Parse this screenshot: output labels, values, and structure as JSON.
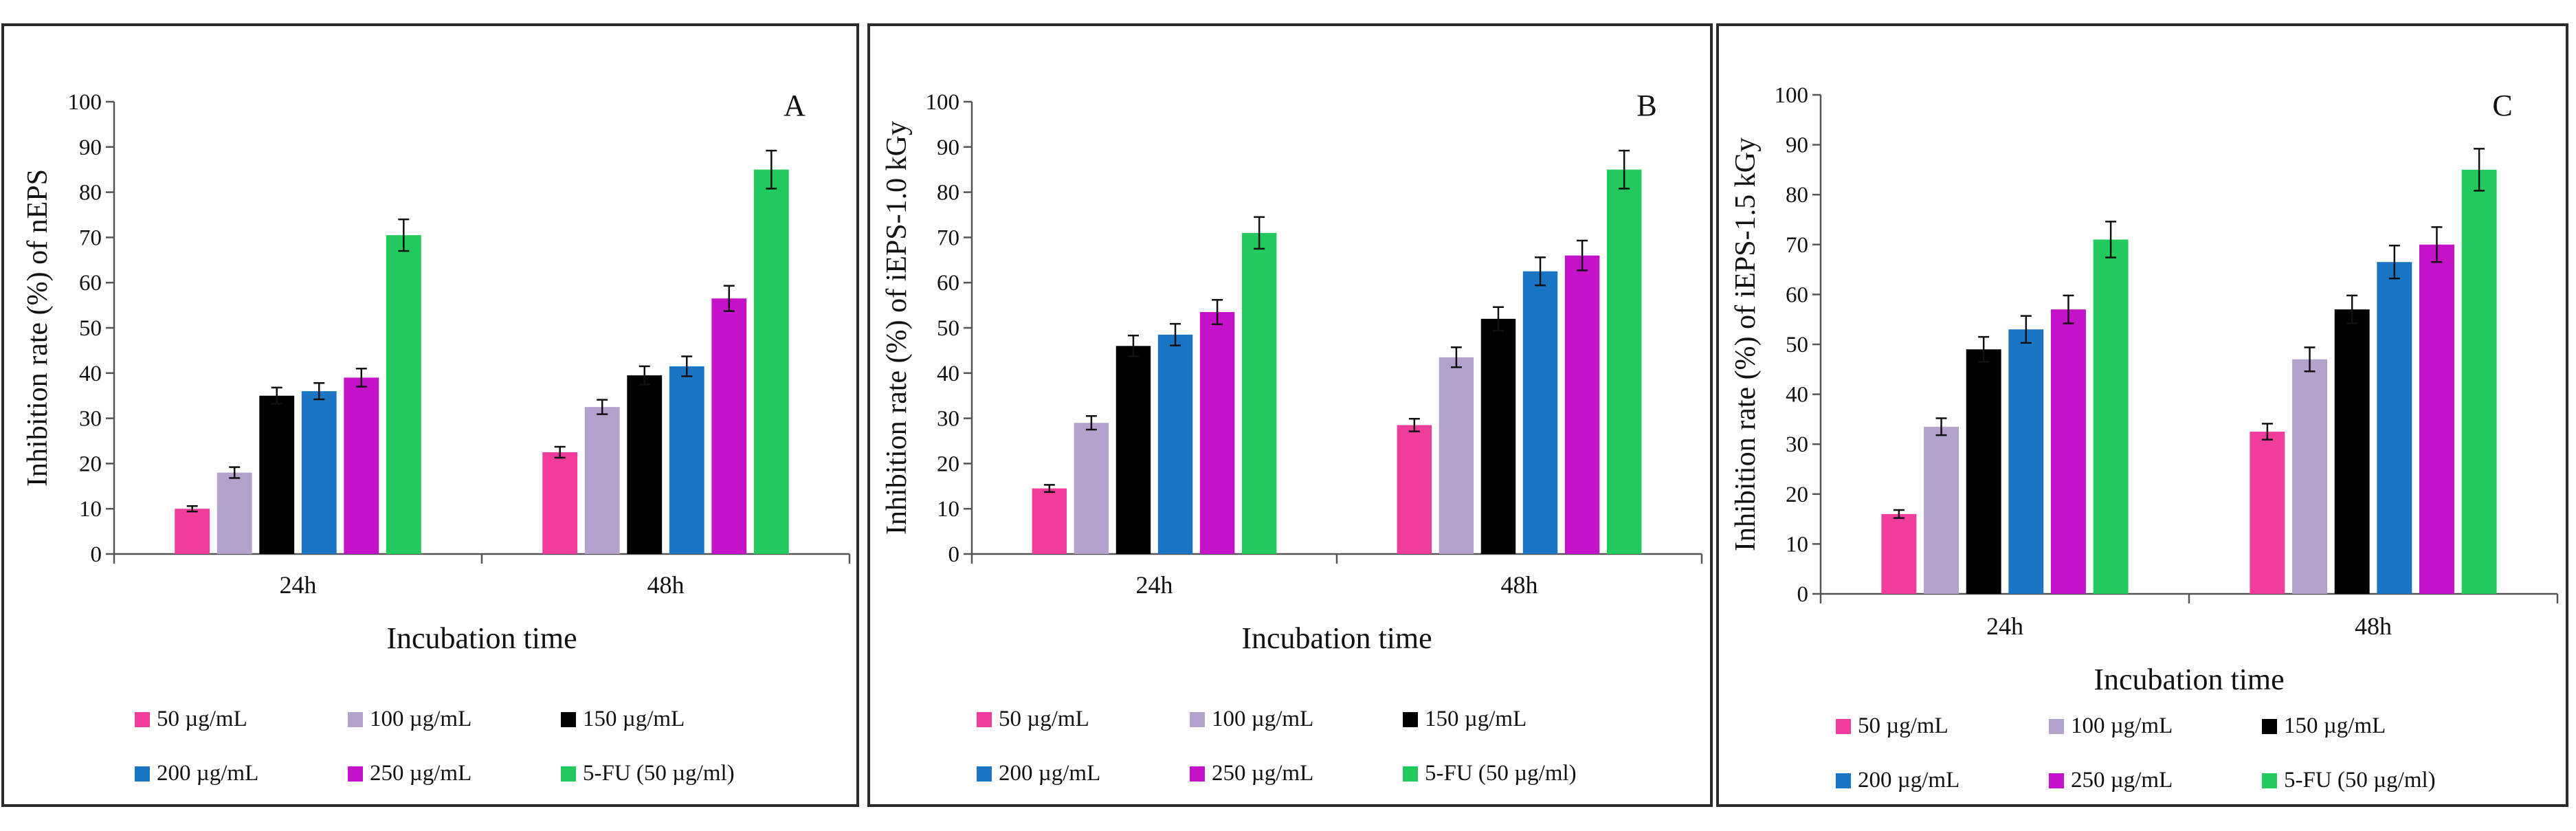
{
  "chart_data": [
    {
      "type": "bar",
      "panel_label": "A",
      "ylabel": "Inhibition rate (%) of nEPS",
      "xlabel": "Incubation time",
      "categories": [
        "24h",
        "48h"
      ],
      "ylim": [
        0,
        100
      ],
      "yticks": [
        "0",
        "10",
        "20",
        "30",
        "40",
        "50",
        "60",
        "70",
        "80",
        "90",
        "100"
      ],
      "series": [
        {
          "name": "50 µg/mL",
          "color": "#f03c9a",
          "values": [
            10.0,
            22.5
          ],
          "errors": [
            0.6,
            1.2
          ]
        },
        {
          "name": "100 µg/mL",
          "color": "#b3a2cc",
          "values": [
            18.0,
            32.5
          ],
          "errors": [
            1.2,
            1.6
          ]
        },
        {
          "name": "150 µg/mL",
          "color": "#000000",
          "values": [
            35.0,
            39.5
          ],
          "errors": [
            1.8,
            2.0
          ]
        },
        {
          "name": "200 µg/mL",
          "color": "#1a76c4",
          "values": [
            36.0,
            41.5
          ],
          "errors": [
            1.8,
            2.2
          ]
        },
        {
          "name": "250 µg/mL",
          "color": "#c412c8",
          "values": [
            39.0,
            56.5
          ],
          "errors": [
            2.0,
            2.8
          ]
        },
        {
          "name": "5-FU (50 µg/ml)",
          "color": "#22c95c",
          "values": [
            70.5,
            85.0
          ],
          "errors": [
            3.5,
            4.2
          ]
        }
      ]
    },
    {
      "type": "bar",
      "panel_label": "B",
      "ylabel": "Inhibition rate (%) of iEPS-1.0 kGy",
      "xlabel": "Incubation time",
      "categories": [
        "24h",
        "48h"
      ],
      "ylim": [
        0,
        100
      ],
      "yticks": [
        "0",
        "10",
        "20",
        "30",
        "40",
        "50",
        "60",
        "70",
        "80",
        "90",
        "100"
      ],
      "series": [
        {
          "name": "50 µg/mL",
          "color": "#f03c9a",
          "values": [
            14.5,
            28.5
          ],
          "errors": [
            0.8,
            1.4
          ]
        },
        {
          "name": "100 µg/mL",
          "color": "#b3a2cc",
          "values": [
            29.0,
            43.5
          ],
          "errors": [
            1.5,
            2.2
          ]
        },
        {
          "name": "150 µg/mL",
          "color": "#000000",
          "values": [
            46.0,
            52.0
          ],
          "errors": [
            2.3,
            2.6
          ]
        },
        {
          "name": "200 µg/mL",
          "color": "#1a76c4",
          "values": [
            48.5,
            62.5
          ],
          "errors": [
            2.4,
            3.1
          ]
        },
        {
          "name": "250 µg/mL",
          "color": "#c412c8",
          "values": [
            53.5,
            66.0
          ],
          "errors": [
            2.7,
            3.3
          ]
        },
        {
          "name": "5-FU (50 µg/ml)",
          "color": "#22c95c",
          "values": [
            71.0,
            85.0
          ],
          "errors": [
            3.5,
            4.2
          ]
        }
      ]
    },
    {
      "type": "bar",
      "panel_label": "C",
      "ylabel": "Inhibition rate (%) of iEPS-1.5 kGy",
      "xlabel": "Incubation time",
      "categories": [
        "24h",
        "48h"
      ],
      "ylim": [
        0,
        100
      ],
      "yticks": [
        "0",
        "10",
        "20",
        "30",
        "40",
        "50",
        "60",
        "70",
        "80",
        "90",
        "100"
      ],
      "series": [
        {
          "name": "50 µg/mL",
          "color": "#f03c9a",
          "values": [
            16.0,
            32.5
          ],
          "errors": [
            0.8,
            1.6
          ]
        },
        {
          "name": "100 µg/mL",
          "color": "#b3a2cc",
          "values": [
            33.5,
            47.0
          ],
          "errors": [
            1.7,
            2.4
          ]
        },
        {
          "name": "150 µg/mL",
          "color": "#000000",
          "values": [
            49.0,
            57.0
          ],
          "errors": [
            2.5,
            2.8
          ]
        },
        {
          "name": "200 µg/mL",
          "color": "#1a76c4",
          "values": [
            53.0,
            66.5
          ],
          "errors": [
            2.7,
            3.3
          ]
        },
        {
          "name": "250 µg/mL",
          "color": "#c412c8",
          "values": [
            57.0,
            70.0
          ],
          "errors": [
            2.8,
            3.5
          ]
        },
        {
          "name": "5-FU (50 µg/ml)",
          "color": "#22c95c",
          "values": [
            71.0,
            85.0
          ],
          "errors": [
            3.6,
            4.2
          ]
        }
      ]
    }
  ]
}
